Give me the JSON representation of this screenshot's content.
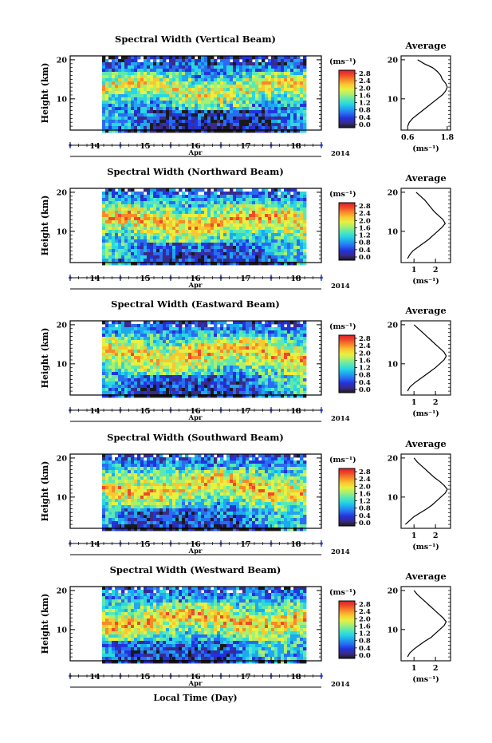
{
  "figure": {
    "year_label": "2014",
    "month_label": "Apr",
    "xlabel_bottom": "Local Time (Day)"
  },
  "colorbar": {
    "unit_label": "(ms⁻¹)",
    "stops": [
      "#1a1a1a",
      "#3a2a8a",
      "#2233dd",
      "#2a6cf0",
      "#1ea8f0",
      "#2ad8e0",
      "#5ee8b0",
      "#a8f070",
      "#e8f040",
      "#f8c830",
      "#f88a28",
      "#ee4a28",
      "#dd1e2e"
    ]
  },
  "chart_data": [
    {
      "type": "heatmap",
      "title": "Spectral Width (Vertical Beam)",
      "ylabel": "Height (km)",
      "y_ticks": [
        "20",
        "10"
      ],
      "x_ticks": [
        "14",
        "15",
        "16",
        "17",
        "18"
      ],
      "colorbar_ticks": [
        "2.8",
        "2.4",
        "2.0",
        "1.6",
        "1.2",
        "0.8",
        "0.4",
        "0.0"
      ],
      "average_profile": {
        "title": "Average",
        "xlabel": "(ms⁻¹)",
        "x_ticks": [
          "0.6",
          "1.8"
        ],
        "y_ticks": [
          "20",
          "10"
        ],
        "xlim": [
          0.4,
          1.9
        ],
        "points": [
          [
            0.6,
            3
          ],
          [
            0.65,
            4
          ],
          [
            0.75,
            5
          ],
          [
            0.9,
            6
          ],
          [
            1.05,
            7
          ],
          [
            1.2,
            8
          ],
          [
            1.35,
            9
          ],
          [
            1.5,
            10
          ],
          [
            1.65,
            11
          ],
          [
            1.75,
            12
          ],
          [
            1.8,
            13
          ],
          [
            1.75,
            14
          ],
          [
            1.65,
            15
          ],
          [
            1.6,
            16
          ],
          [
            1.5,
            17
          ],
          [
            1.35,
            18
          ],
          [
            1.1,
            19
          ],
          [
            0.9,
            20
          ]
        ]
      }
    },
    {
      "type": "heatmap",
      "title": "Spectral Width (Northward Beam)",
      "ylabel": "Height (km)",
      "y_ticks": [
        "20",
        "10"
      ],
      "x_ticks": [
        "14",
        "15",
        "16",
        "17",
        "18"
      ],
      "colorbar_ticks": [
        "2.8",
        "2.4",
        "2.0",
        "1.6",
        "1.2",
        "0.8",
        "0.4",
        "0.0"
      ],
      "average_profile": {
        "title": "Average",
        "xlabel": "(ms⁻¹)",
        "x_ticks": [
          "1",
          "2"
        ],
        "y_ticks": [
          "20",
          "10"
        ],
        "xlim": [
          0.4,
          2.7
        ],
        "points": [
          [
            0.7,
            3
          ],
          [
            0.8,
            4
          ],
          [
            0.95,
            5
          ],
          [
            1.2,
            6
          ],
          [
            1.45,
            7
          ],
          [
            1.7,
            8
          ],
          [
            1.9,
            9
          ],
          [
            2.1,
            10
          ],
          [
            2.3,
            11
          ],
          [
            2.45,
            12
          ],
          [
            2.35,
            13
          ],
          [
            2.15,
            14
          ],
          [
            1.95,
            15
          ],
          [
            1.8,
            16
          ],
          [
            1.65,
            17
          ],
          [
            1.5,
            18
          ],
          [
            1.3,
            19
          ],
          [
            1.1,
            20
          ]
        ]
      }
    },
    {
      "type": "heatmap",
      "title": "Spectral Width (Eastward Beam)",
      "ylabel": "Height (km)",
      "y_ticks": [
        "20",
        "10"
      ],
      "x_ticks": [
        "14",
        "15",
        "16",
        "17",
        "18"
      ],
      "colorbar_ticks": [
        "2.8",
        "2.4",
        "2.0",
        "1.6",
        "1.2",
        "0.8",
        "0.4",
        "0.0"
      ],
      "average_profile": {
        "title": "Average",
        "xlabel": "(ms⁻¹)",
        "x_ticks": [
          "1",
          "2"
        ],
        "y_ticks": [
          "20",
          "10"
        ],
        "xlim": [
          0.4,
          2.7
        ],
        "points": [
          [
            0.7,
            3
          ],
          [
            0.8,
            4
          ],
          [
            1.0,
            5
          ],
          [
            1.25,
            6
          ],
          [
            1.5,
            7
          ],
          [
            1.75,
            8
          ],
          [
            2.0,
            9
          ],
          [
            2.2,
            10
          ],
          [
            2.4,
            11
          ],
          [
            2.5,
            12
          ],
          [
            2.4,
            13
          ],
          [
            2.2,
            14
          ],
          [
            2.0,
            15
          ],
          [
            1.8,
            16
          ],
          [
            1.6,
            17
          ],
          [
            1.4,
            18
          ],
          [
            1.2,
            19
          ],
          [
            1.0,
            20
          ]
        ]
      }
    },
    {
      "type": "heatmap",
      "title": "Spectral Width (Southward Beam)",
      "ylabel": "Height (km)",
      "y_ticks": [
        "20",
        "10"
      ],
      "x_ticks": [
        "14",
        "15",
        "16",
        "17",
        "18"
      ],
      "colorbar_ticks": [
        "2.8",
        "2.4",
        "2.0",
        "1.6",
        "1.2",
        "0.8",
        "0.4",
        "0.0"
      ],
      "average_profile": {
        "title": "Average",
        "xlabel": "(ms⁻¹)",
        "x_ticks": [
          "1",
          "2"
        ],
        "y_ticks": [
          "20",
          "10"
        ],
        "xlim": [
          0.4,
          2.7
        ],
        "points": [
          [
            0.6,
            3
          ],
          [
            0.8,
            4
          ],
          [
            1.0,
            5
          ],
          [
            1.3,
            6
          ],
          [
            1.6,
            7
          ],
          [
            1.85,
            8
          ],
          [
            2.05,
            9
          ],
          [
            2.25,
            10
          ],
          [
            2.45,
            11
          ],
          [
            2.55,
            12
          ],
          [
            2.4,
            13
          ],
          [
            2.2,
            14
          ],
          [
            1.95,
            15
          ],
          [
            1.75,
            16
          ],
          [
            1.55,
            17
          ],
          [
            1.35,
            18
          ],
          [
            1.15,
            19
          ],
          [
            1.0,
            20
          ]
        ]
      }
    },
    {
      "type": "heatmap",
      "title": "Spectral Width (Westward Beam)",
      "ylabel": "Height (km)",
      "y_ticks": [
        "20",
        "10"
      ],
      "x_ticks": [
        "14",
        "15",
        "16",
        "17",
        "18"
      ],
      "colorbar_ticks": [
        "2.8",
        "2.4",
        "2.0",
        "1.6",
        "1.2",
        "0.8",
        "0.4",
        "0.0"
      ],
      "average_profile": {
        "title": "Average",
        "xlabel": "(ms⁻¹)",
        "x_ticks": [
          "1",
          "2"
        ],
        "y_ticks": [
          "20",
          "10"
        ],
        "xlim": [
          0.4,
          2.7
        ],
        "points": [
          [
            0.7,
            3
          ],
          [
            0.8,
            4
          ],
          [
            1.0,
            5
          ],
          [
            1.25,
            6
          ],
          [
            1.5,
            7
          ],
          [
            1.8,
            8
          ],
          [
            2.0,
            9
          ],
          [
            2.2,
            10
          ],
          [
            2.4,
            11
          ],
          [
            2.5,
            12
          ],
          [
            2.35,
            13
          ],
          [
            2.15,
            14
          ],
          [
            1.95,
            15
          ],
          [
            1.75,
            16
          ],
          [
            1.55,
            17
          ],
          [
            1.35,
            18
          ],
          [
            1.15,
            19
          ],
          [
            1.0,
            20
          ]
        ]
      }
    }
  ]
}
